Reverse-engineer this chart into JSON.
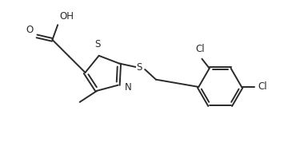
{
  "bg_color": "#ffffff",
  "line_color": "#2a2a2a",
  "line_width": 1.4,
  "font_size": 8.5,
  "figsize": [
    3.6,
    1.88
  ],
  "dpi": 100,
  "xlim": [
    0,
    9.5
  ],
  "ylim": [
    0,
    5.0
  ]
}
